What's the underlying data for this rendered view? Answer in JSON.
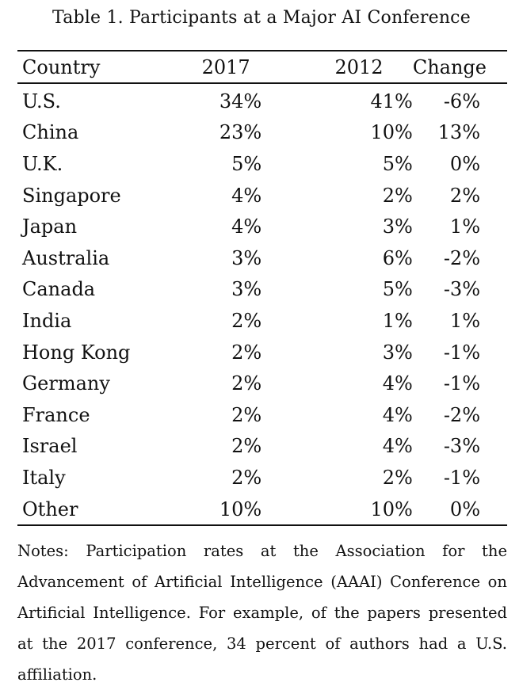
{
  "title": "Table 1. Participants at a Major AI Conference",
  "table": {
    "headers": {
      "country": "Country",
      "y2017": "2017",
      "y2012": "2012",
      "change": "Change"
    },
    "rows": [
      {
        "country": "U.S.",
        "y2017": "34%",
        "y2012": "41%",
        "change": "-6%"
      },
      {
        "country": "China",
        "y2017": "23%",
        "y2012": "10%",
        "change": "13%"
      },
      {
        "country": "U.K.",
        "y2017": "5%",
        "y2012": "5%",
        "change": "0%"
      },
      {
        "country": "Singapore",
        "y2017": "4%",
        "y2012": "2%",
        "change": "2%"
      },
      {
        "country": "Japan",
        "y2017": "4%",
        "y2012": "3%",
        "change": "1%"
      },
      {
        "country": "Australia",
        "y2017": "3%",
        "y2012": "6%",
        "change": "-2%"
      },
      {
        "country": "Canada",
        "y2017": "3%",
        "y2012": "5%",
        "change": "-3%"
      },
      {
        "country": "India",
        "y2017": "2%",
        "y2012": "1%",
        "change": "1%"
      },
      {
        "country": "Hong Kong",
        "y2017": "2%",
        "y2012": "3%",
        "change": "-1%"
      },
      {
        "country": "Germany",
        "y2017": "2%",
        "y2012": "4%",
        "change": "-1%"
      },
      {
        "country": "France",
        "y2017": "2%",
        "y2012": "4%",
        "change": "-2%"
      },
      {
        "country": "Israel",
        "y2017": "2%",
        "y2012": "4%",
        "change": "-3%"
      },
      {
        "country": "Italy",
        "y2017": "2%",
        "y2012": "2%",
        "change": "-1%"
      },
      {
        "country": "Other",
        "y2017": "10%",
        "y2012": "10%",
        "change": "0%"
      }
    ]
  },
  "notes": "Notes: Participation rates at the Association for the Advancement of Artificial Intelligence (AAAI) Conference on Artificial Intelligence. For example, of the papers presented at the 2017 conference, 34 percent of authors had a U.S. affiliation."
}
